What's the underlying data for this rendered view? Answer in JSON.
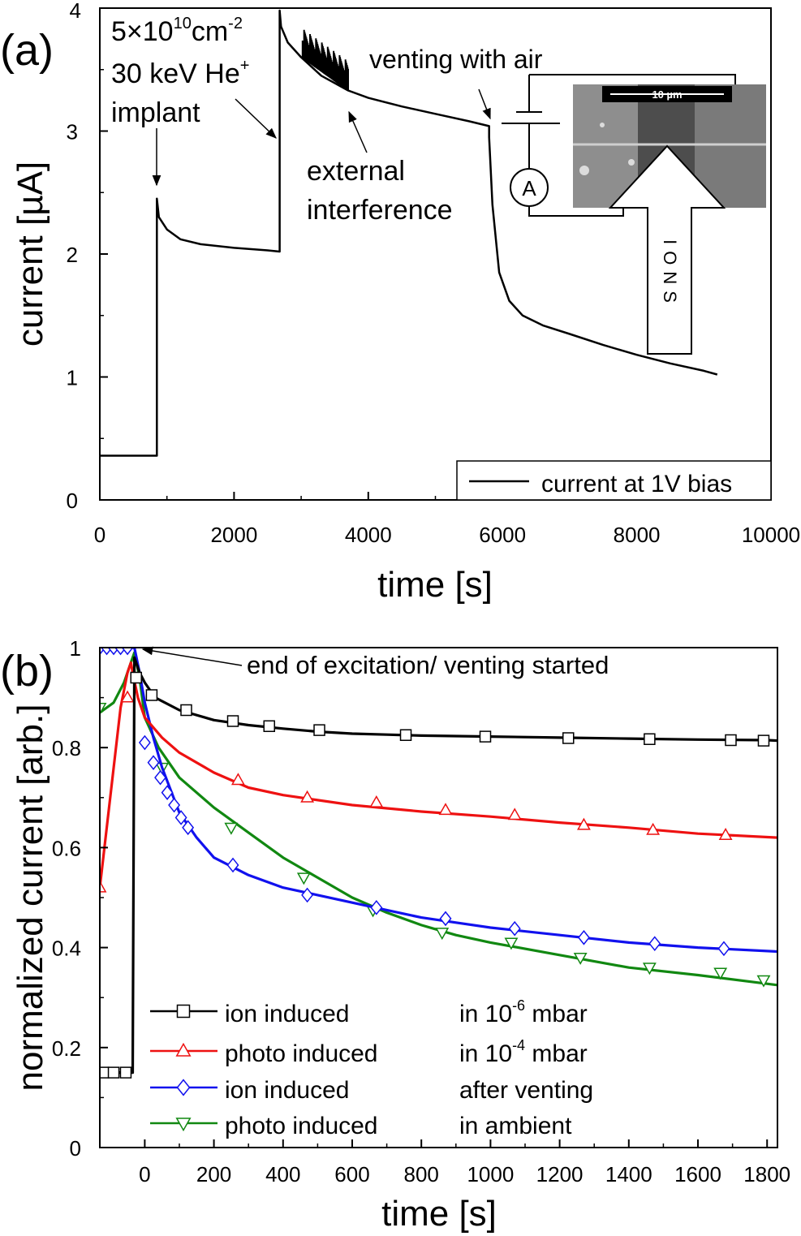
{
  "chart_data": [
    {
      "type": "line",
      "panel_label": "(a)",
      "xlabel": "time [s]",
      "ylabel": "current [µA]",
      "xlim": [
        0,
        10000
      ],
      "ylim": [
        0,
        4
      ],
      "xticks": [
        0,
        2000,
        4000,
        6000,
        8000,
        10000
      ],
      "yticks": [
        0,
        1,
        2,
        3,
        4
      ],
      "legend": {
        "position": "bottom-right",
        "entries": [
          "current at 1V bias"
        ]
      },
      "series": [
        {
          "name": "current at 1V bias",
          "color": "#000000",
          "x": [
            0,
            850,
            850,
            880,
            1000,
            1200,
            1500,
            2000,
            2500,
            2680,
            2680,
            2700,
            2800,
            3000,
            3300,
            3700,
            4000,
            4500,
            5000,
            5500,
            5800,
            5800,
            5850,
            5950,
            6100,
            6300,
            6600,
            7000,
            7500,
            8000,
            8500,
            9000,
            9200
          ],
          "y": [
            0.36,
            0.36,
            2.45,
            2.3,
            2.2,
            2.12,
            2.08,
            2.05,
            2.03,
            2.02,
            3.98,
            3.85,
            3.72,
            3.6,
            3.45,
            3.33,
            3.27,
            3.2,
            3.14,
            3.08,
            3.04,
            2.95,
            2.4,
            1.85,
            1.62,
            1.5,
            1.42,
            1.35,
            1.26,
            1.18,
            1.11,
            1.05,
            1.02
          ]
        }
      ],
      "annotations": [
        {
          "text": "5×10",
          "sup": "10",
          "unit": "cm",
          "unit_sup": "-2"
        },
        {
          "text": "30 keV He",
          "sup": "+"
        },
        {
          "text": "implant",
          "points_to": [
            850,
            2.45
          ]
        },
        {
          "text": "venting with air",
          "points_to": [
            5800,
            3.04
          ]
        },
        {
          "text": "external",
          "line2": "interference",
          "points_to": [
            3700,
            3.33
          ]
        }
      ],
      "inset": {
        "scale_bar": "10 µm",
        "arrow_label": "IONS",
        "meter_label": "A"
      }
    },
    {
      "type": "line",
      "panel_label": "(b)",
      "xlabel": "time [s]",
      "ylabel": "normalized current [arb.]",
      "xlim": [
        -130,
        1830
      ],
      "ylim": [
        0,
        1
      ],
      "xticks": [
        0,
        200,
        400,
        600,
        800,
        1000,
        1200,
        1400,
        1600,
        1800
      ],
      "xtick_labels": [
        "0",
        "200",
        "400",
        "600",
        "800",
        "1000",
        "1200",
        "1400",
        "1600",
        "1800"
      ],
      "yticks": [
        0,
        0.2,
        0.4,
        0.6,
        0.8,
        1
      ],
      "ytick_labels": [
        "0",
        "0.2",
        "0.4",
        "0.6",
        "0.8",
        "1"
      ],
      "legend": {
        "position": "bottom-left"
      },
      "annotations": [
        {
          "text": "end of excitation/ venting started",
          "points_to": [
            -30,
            1.0
          ]
        }
      ],
      "series": [
        {
          "name": "ion induced",
          "condition": "in 10",
          "condition_sup": "-6",
          "condition_unit": "mbar",
          "color": "#000000",
          "marker": "square",
          "x": [
            -130,
            -100,
            -60,
            -35,
            -30,
            -15,
            0,
            30,
            100,
            200,
            300,
            400,
            500,
            600,
            700,
            800,
            900,
            1000,
            1200,
            1400,
            1600,
            1800,
            1830
          ],
          "y": [
            0.15,
            0.15,
            0.15,
            0.15,
            0.98,
            0.95,
            0.93,
            0.9,
            0.875,
            0.855,
            0.845,
            0.838,
            0.832,
            0.828,
            0.826,
            0.824,
            0.823,
            0.822,
            0.82,
            0.818,
            0.816,
            0.815,
            0.814
          ],
          "marker_x": [
            -120,
            -90,
            -55,
            -25,
            20,
            120,
            255,
            360,
            505,
            755,
            985,
            1225,
            1460,
            1695,
            1790
          ],
          "marker_y": [
            0.15,
            0.15,
            0.15,
            0.94,
            0.905,
            0.875,
            0.853,
            0.843,
            0.835,
            0.825,
            0.822,
            0.819,
            0.817,
            0.815,
            0.814
          ]
        },
        {
          "name": "photo induced",
          "condition": "in 10",
          "condition_sup": "-4",
          "condition_unit": "mbar",
          "color": "#ee1111",
          "marker": "triangle-up",
          "x": [
            -130,
            -100,
            -70,
            -50,
            -40,
            -35,
            -20,
            0,
            50,
            100,
            200,
            300,
            400,
            600,
            800,
            1000,
            1200,
            1400,
            1600,
            1830
          ],
          "y": [
            0.52,
            0.7,
            0.88,
            0.95,
            0.97,
            0.95,
            0.9,
            0.86,
            0.82,
            0.79,
            0.75,
            0.72,
            0.705,
            0.685,
            0.672,
            0.662,
            0.65,
            0.64,
            0.628,
            0.62
          ],
          "marker_x": [
            -130,
            -50,
            270,
            470,
            670,
            870,
            1070,
            1270,
            1470,
            1680
          ],
          "marker_y": [
            0.52,
            0.9,
            0.735,
            0.7,
            0.69,
            0.675,
            0.665,
            0.645,
            0.635,
            0.625
          ]
        },
        {
          "name": "ion induced",
          "condition": "after venting",
          "condition_sup": "",
          "condition_unit": "",
          "color": "#1111ee",
          "marker": "diamond",
          "x": [
            -130,
            -40,
            -30,
            -15,
            0,
            25,
            50,
            100,
            150,
            200,
            300,
            400,
            500,
            600,
            700,
            800,
            900,
            1000,
            1200,
            1400,
            1600,
            1830
          ],
          "y": [
            1.0,
            1.0,
            1.0,
            0.95,
            0.89,
            0.82,
            0.76,
            0.67,
            0.62,
            0.58,
            0.545,
            0.52,
            0.505,
            0.49,
            0.475,
            0.46,
            0.45,
            0.44,
            0.425,
            0.41,
            0.4,
            0.392
          ],
          "marker_x": [
            -130,
            -110,
            -90,
            -70,
            -50,
            0,
            25,
            45,
            65,
            85,
            105,
            125,
            255,
            470,
            670,
            870,
            1070,
            1270,
            1475,
            1675
          ],
          "marker_y": [
            1.0,
            1.0,
            1.0,
            1.0,
            1.0,
            0.81,
            0.77,
            0.74,
            0.71,
            0.685,
            0.66,
            0.64,
            0.565,
            0.505,
            0.48,
            0.458,
            0.438,
            0.42,
            0.408,
            0.398
          ]
        },
        {
          "name": "photo induced",
          "condition": "in ambient",
          "condition_sup": "",
          "condition_unit": "",
          "color": "#118811",
          "marker": "triangle-down",
          "x": [
            -130,
            -90,
            -60,
            -40,
            -30,
            -15,
            0,
            40,
            100,
            200,
            300,
            400,
            500,
            600,
            700,
            800,
            900,
            1000,
            1200,
            1400,
            1600,
            1830
          ],
          "y": [
            0.87,
            0.89,
            0.93,
            0.97,
            0.99,
            0.94,
            0.86,
            0.8,
            0.74,
            0.68,
            0.63,
            0.58,
            0.54,
            0.5,
            0.47,
            0.445,
            0.425,
            0.41,
            0.385,
            0.36,
            0.345,
            0.325
          ],
          "marker_x": [
            -130,
            50,
            250,
            460,
            660,
            860,
            1060,
            1260,
            1460,
            1665,
            1790
          ],
          "marker_y": [
            0.88,
            0.76,
            0.64,
            0.54,
            0.475,
            0.43,
            0.41,
            0.38,
            0.36,
            0.35,
            0.335
          ]
        }
      ]
    }
  ]
}
